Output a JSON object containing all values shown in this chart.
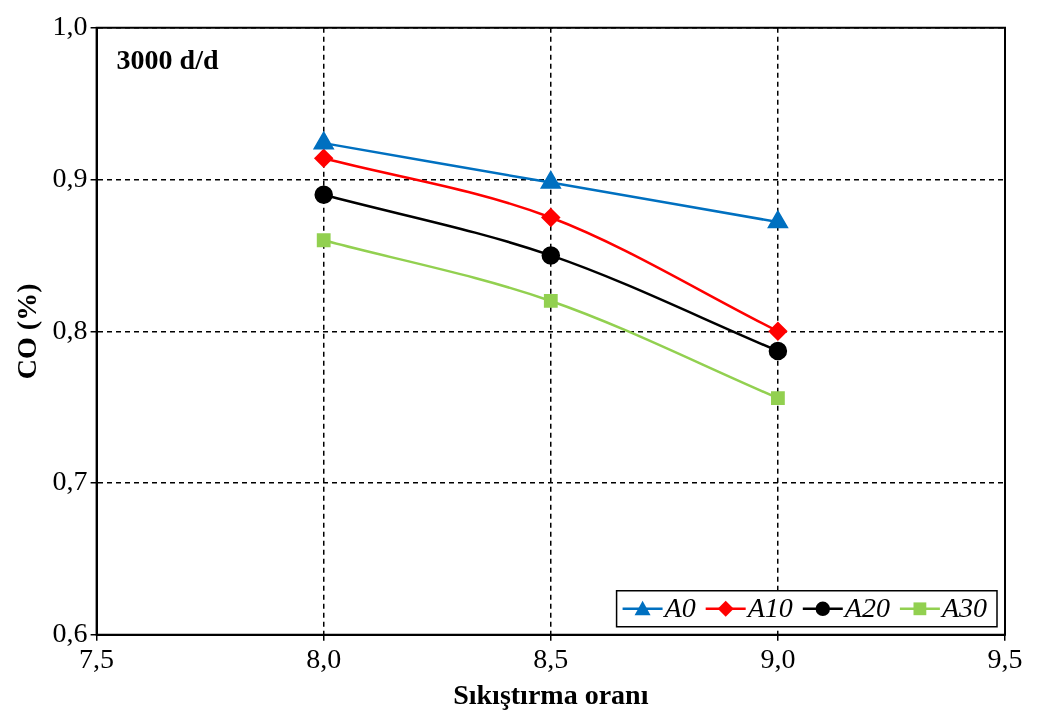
{
  "chart_data": {
    "type": "line",
    "xlabel": "Sıkıştırma oranı",
    "ylabel": "CO (%)",
    "annotations": [
      "3000 d/d"
    ],
    "xlim": [
      7.5,
      9.5
    ],
    "xticks": [
      {
        "value": 7.5,
        "label": "7,5"
      },
      {
        "value": 8,
        "label": "8,0"
      },
      {
        "value": 8.5,
        "label": "8,5"
      },
      {
        "value": 9,
        "label": "9,0"
      },
      {
        "value": 9.5,
        "label": "9,5"
      }
    ],
    "ylim": [
      0.6,
      1.0
    ],
    "yticks": [
      {
        "value": 0.6,
        "label": "0,6"
      },
      {
        "value": 0.7,
        "label": "0,7"
      },
      {
        "value": 0.8,
        "label": "0,8"
      },
      {
        "value": 0.9,
        "label": "0,9"
      },
      {
        "value": 1.0,
        "label": "1,0"
      }
    ],
    "grid": true,
    "legend": "bottom right",
    "x": [
      8.0,
      8.5,
      9.0
    ],
    "series": [
      {
        "name": "A0",
        "color": "#0070c0",
        "marker": "triangle",
        "values": [
          0.924,
          0.898,
          0.872
        ]
      },
      {
        "name": "A10",
        "color": "#ff0000",
        "marker": "diamond",
        "values": [
          0.914,
          0.875,
          0.8
        ]
      },
      {
        "name": "A20",
        "color": "#000000",
        "marker": "circle",
        "values": [
          0.89,
          0.85,
          0.787
        ]
      },
      {
        "name": "A30",
        "color": "#92d050",
        "marker": "square",
        "values": [
          0.86,
          0.82,
          0.756
        ]
      }
    ]
  }
}
